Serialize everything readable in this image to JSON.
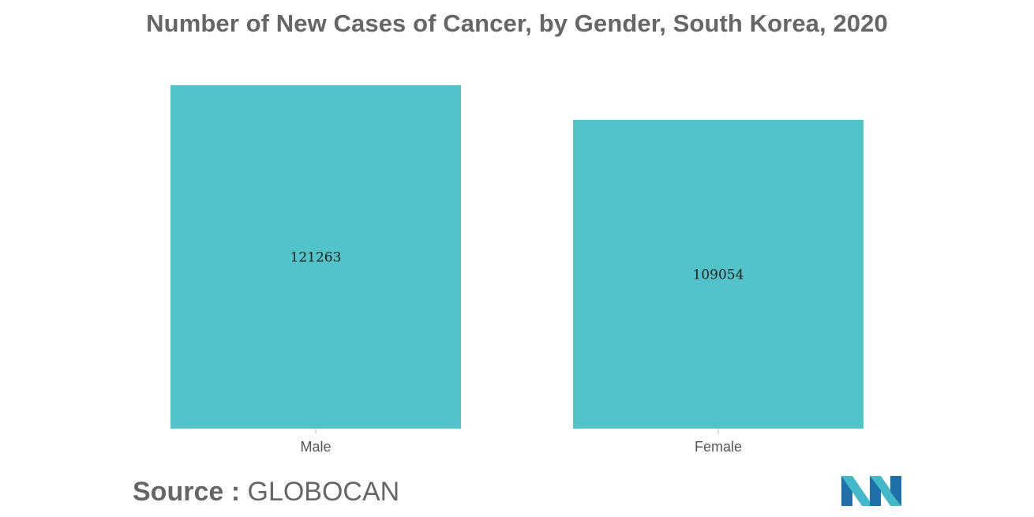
{
  "chart_data": {
    "type": "bar",
    "title": "Number of New Cases of Cancer, by Gender, South Korea, 2020",
    "categories": [
      "Male",
      "Female"
    ],
    "values": [
      121263,
      109054
    ],
    "xlabel": "",
    "ylabel": "",
    "ylim": [
      0,
      121263
    ],
    "grid": false,
    "legend": "none",
    "bar_color": "#52c3c9"
  },
  "source": {
    "label": "Source :",
    "value": "GLOBOCAN"
  },
  "logo": {
    "name": "mordor-intelligence-logo-icon",
    "colors": [
      "#1f6fa8",
      "#42b8c8"
    ]
  }
}
